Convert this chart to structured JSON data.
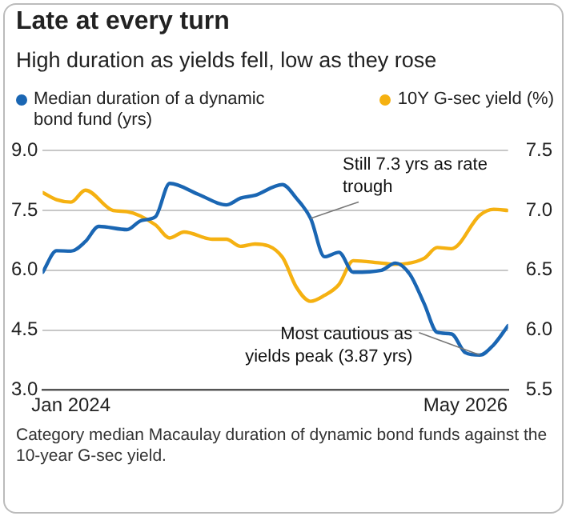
{
  "chart_data": {
    "type": "line",
    "title": "Late at every turn",
    "subtitle": "High duration as yields fell, low as they rose",
    "xlim": [
      "2023-11",
      "2026-08"
    ],
    "xticks": [
      {
        "value": "2024-01",
        "label": "Jan 2024"
      },
      {
        "value": "2026-05",
        "label": "May 2026"
      }
    ],
    "ylim": [
      3,
      9
    ],
    "yticks": [
      {
        "value": 3,
        "label": "3.0"
      },
      {
        "value": 4.5,
        "label": "4.5"
      },
      {
        "value": 6,
        "label": "6.0"
      },
      {
        "value": 7.5,
        "label": "7.5"
      },
      {
        "value": 9,
        "label": "9.0"
      }
    ],
    "y2lim": [
      5.5,
      7.5
    ],
    "y2ticks": [
      {
        "value": 5.5,
        "label": "5.5"
      },
      {
        "value": 6,
        "label": "6.0"
      },
      {
        "value": 6.5,
        "label": "6.5"
      },
      {
        "value": 7,
        "label": "7.0"
      },
      {
        "value": 7.5,
        "label": "7.5"
      }
    ],
    "grid": "y",
    "legend": "top",
    "marker": "none",
    "series": [
      {
        "name": "Median duration of a dynamic bond fund (yrs)",
        "color": "#1a66b3",
        "x": [
          "2023-11",
          "2023-12",
          "2024-01",
          "2024-02",
          "2024-03",
          "2024-05",
          "2024-06",
          "2024-07",
          "2024-08",
          "2024-10",
          "2024-12",
          "2025-01",
          "2025-02",
          "2025-04",
          "2025-05",
          "2025-06",
          "2025-07",
          "2025-08",
          "2025-09",
          "2025-11",
          "2025-12",
          "2026-01",
          "2026-02",
          "2026-03",
          "2026-04",
          "2026-05",
          "2026-06",
          "2026-07",
          "2026-08"
        ],
        "values": [
          5.95,
          6.49,
          6.48,
          6.72,
          7.1,
          7.02,
          7.25,
          7.34,
          8.18,
          7.91,
          7.64,
          7.81,
          7.88,
          8.15,
          7.81,
          7.3,
          6.34,
          6.45,
          5.95,
          6.0,
          6.18,
          5.9,
          5.16,
          4.44,
          4.4,
          3.93,
          3.87,
          4.13,
          4.61
        ]
      },
      {
        "name": "10Y G-sec yield (%)",
        "color": "#f5b111",
        "axis": "y2",
        "x": [
          "2023-11",
          "2023-12",
          "2024-01",
          "2024-02",
          "2024-04",
          "2024-05",
          "2024-07",
          "2024-08",
          "2024-09",
          "2024-11",
          "2024-12",
          "2025-01",
          "2025-02",
          "2025-04",
          "2025-05",
          "2025-06",
          "2025-07",
          "2025-08",
          "2025-09",
          "2025-11",
          "2025-12",
          "2026-02",
          "2026-03",
          "2026-04",
          "2026-06",
          "2026-07",
          "2026-08"
        ],
        "values": [
          7.15,
          7.09,
          7.07,
          7.17,
          7.0,
          6.99,
          6.88,
          6.77,
          6.82,
          6.76,
          6.76,
          6.7,
          6.72,
          6.61,
          6.36,
          6.24,
          6.29,
          6.38,
          6.58,
          6.56,
          6.55,
          6.6,
          6.69,
          6.68,
          6.96,
          7.01,
          7.0
        ]
      }
    ],
    "annotations": [
      {
        "text": "Still 7.3 yrs as rate trough",
        "x": "2025-06",
        "y": 7.3
      },
      {
        "text": "Most cautious as yields peak (3.87 yrs)",
        "x": "2026-06",
        "y": 3.87
      },
      "Category median Macaulay duration of dynamic bond funds against the 10-year G-sec yield."
    ]
  }
}
